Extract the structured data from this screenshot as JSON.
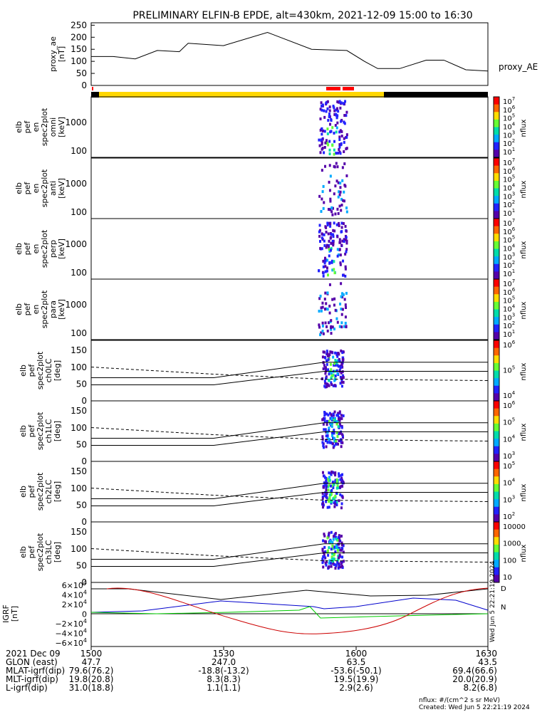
{
  "title": "PRELIMINARY ELFIN-B EPDE, alt=430km, 2021-12-09 15:00 to 16:30",
  "colors": {
    "line": "#000000",
    "dashed": "#000000",
    "sat_yellow": "#ffd700",
    "sat_black": "#000000",
    "sat_red": "#ff0000",
    "blue": "#0000cc",
    "green": "#00cc00",
    "red": "#cc0000"
  },
  "panels": {
    "ae": {
      "ylabel_lines": [
        "proxy_ae",
        "[nT]"
      ],
      "ticks": [
        "250",
        "200",
        "150",
        "100",
        "50",
        "0"
      ],
      "legend": "proxy_AE"
    },
    "omni": {
      "ylabel_lines": [
        "elb",
        "pef",
        "en",
        "spec2plot",
        "omni",
        "[keV]"
      ],
      "ticks": [
        "1000",
        "100"
      ],
      "cbar_label": "nflux",
      "cbar_ticks": [
        "10^7",
        "10^6",
        "10^5",
        "10^4",
        "10^3",
        "10^2",
        "10^1"
      ]
    },
    "anti": {
      "ylabel_lines": [
        "elb",
        "pef",
        "en",
        "spec2plot",
        "anti",
        "[keV]"
      ],
      "ticks": [
        "1000",
        "100"
      ],
      "cbar_label": "nflux",
      "cbar_ticks": [
        "10^7",
        "10^6",
        "10^5",
        "10^4",
        "10^3",
        "10^2",
        "10^1"
      ]
    },
    "perp": {
      "ylabel_lines": [
        "elb",
        "pef",
        "en",
        "spec2plot",
        "perp",
        "[keV]"
      ],
      "ticks": [
        "1000",
        "100"
      ],
      "cbar_label": "nflux",
      "cbar_ticks": [
        "10^7",
        "10^6",
        "10^5",
        "10^4",
        "10^3",
        "10^2",
        "10^1"
      ]
    },
    "para": {
      "ylabel_lines": [
        "elb",
        "pef",
        "en",
        "spec2plot",
        "para",
        "[keV]"
      ],
      "ticks": [
        "1000",
        "100"
      ],
      "cbar_label": "nflux",
      "cbar_ticks": [
        "10^7",
        "10^6",
        "10^5",
        "10^4",
        "10^3",
        "10^2",
        "10^1"
      ]
    },
    "ch0": {
      "ylabel_lines": [
        "elb",
        "pef",
        "spec2plot",
        "ch0LC",
        "[deg]"
      ],
      "ticks": [
        "150",
        "100",
        "50",
        "0"
      ],
      "cbar_label": "nflux",
      "cbar_ticks": [
        "10^6",
        "10^5",
        "10^4"
      ]
    },
    "ch1": {
      "ylabel_lines": [
        "elb",
        "pef",
        "spec2plot",
        "ch1LC",
        "[deg]"
      ],
      "ticks": [
        "150",
        "100",
        "50",
        "0"
      ],
      "cbar_label": "nflux",
      "cbar_ticks": [
        "10^6",
        "10^5",
        "10^4",
        "10^3"
      ]
    },
    "ch2": {
      "ylabel_lines": [
        "elb",
        "pef",
        "spec2plot",
        "ch2LC",
        "[deg]"
      ],
      "ticks": [
        "150",
        "100",
        "50",
        "0"
      ],
      "cbar_label": "nflux",
      "cbar_ticks": [
        "10^5",
        "10^4",
        "10^3",
        "10^2"
      ]
    },
    "ch3": {
      "ylabel_lines": [
        "elb",
        "pef",
        "spec2plot",
        "ch3LC",
        "[deg]"
      ],
      "ticks": [
        "150",
        "100",
        "50",
        "0"
      ],
      "cbar_label": "nflux",
      "cbar_ticks": [
        "10000",
        "1000",
        "100",
        "10"
      ]
    },
    "igrf": {
      "ylabel_lines": [
        "IGRF",
        "[nT]"
      ],
      "ticks": [
        "6×10^4",
        "4×10^4",
        "2×10^4",
        "0",
        "−2×10^4",
        "−4×10^4",
        "−6×10^4"
      ],
      "side_stamp": "Wed Jun  5 22:21:19 2024"
    }
  },
  "footer": {
    "rows": [
      [
        "2021 Dec 09",
        "1500",
        "1530",
        "1600",
        "1630"
      ],
      [
        "GLON (east)",
        "47.7",
        "247.0",
        "63.5",
        "43.5"
      ],
      [
        "MLAT-igrf(dip)",
        "79.6(76.2)",
        "-18.8(-13.2)",
        "-53.6(-50.1)",
        "69.4(66.6)"
      ],
      [
        "MLT-igrf(dip)",
        "19.8(20.8)",
        "8.3(8.3)",
        "19.5(19.9)",
        "20.0(20.9)"
      ],
      [
        "L-igrf(dip)",
        "31.0(18.8)",
        "1.1(1.1)",
        "2.9(2.6)",
        "8.2(6.8)"
      ]
    ],
    "units": "nflux: #/(cm^2 s sr MeV)",
    "created": "Created: Wed Jun  5 22:21:19 2024"
  },
  "chart_data": {
    "type": "line",
    "x_ticks": [
      "1500",
      "1530",
      "1600",
      "1630"
    ],
    "series": [
      {
        "name": "proxy_AE",
        "x": [
          0,
          5,
          10,
          15,
          20,
          22,
          30,
          40,
          50,
          58,
          62,
          65,
          70,
          76,
          80,
          85,
          90
        ],
        "values": [
          120,
          120,
          110,
          145,
          140,
          175,
          165,
          220,
          150,
          145,
          100,
          70,
          70,
          105,
          105,
          65,
          60
        ]
      }
    ],
    "igrf_ylim": [
      -60000,
      60000
    ],
    "ae_ylim": [
      0,
      260
    ]
  }
}
